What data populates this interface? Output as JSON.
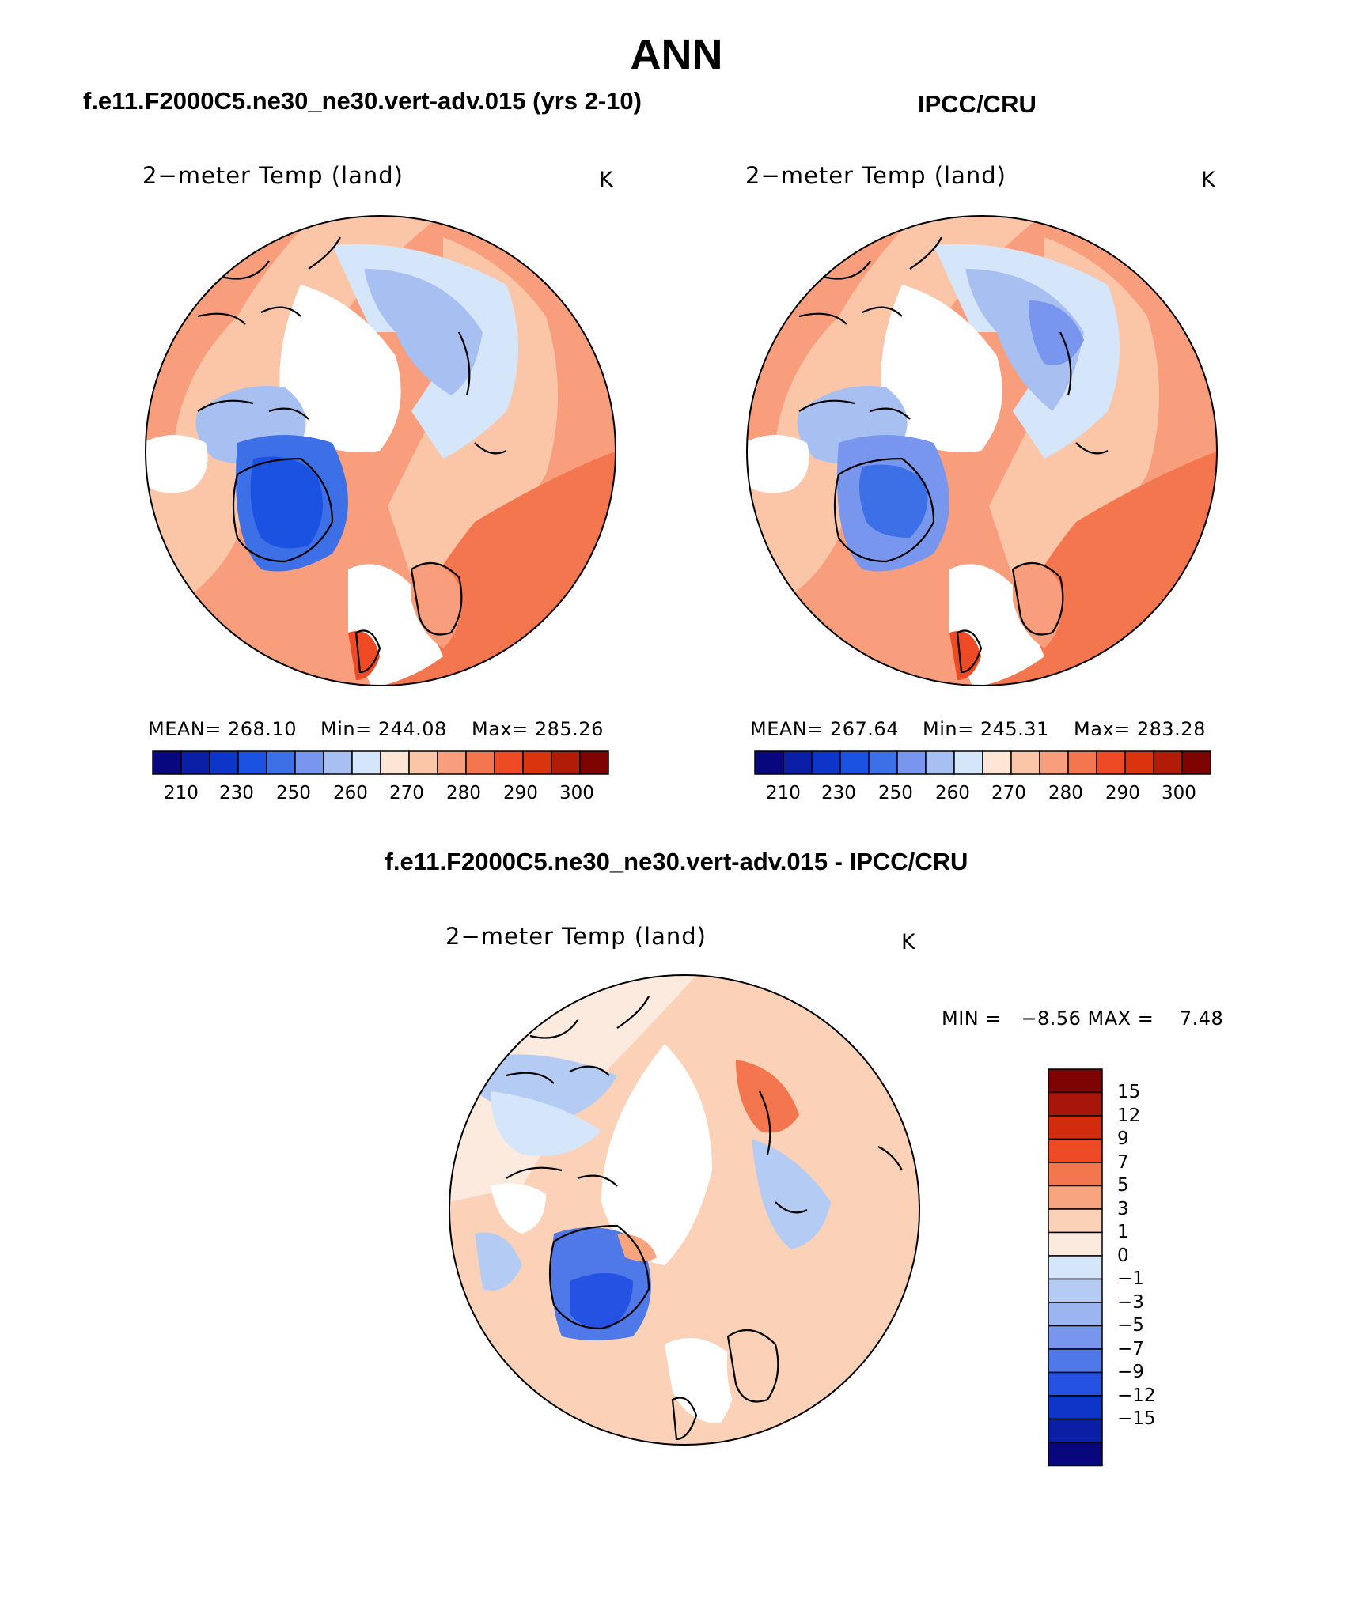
{
  "page": {
    "title": "ANN",
    "diff_title": "f.e11.F2000C5.ne30_ne30.vert-adv.015 - IPCC/CRU"
  },
  "panels": [
    {
      "case_title": "f.e11.F2000C5.ne30_ne30.vert-adv.015 (yrs 2-10)",
      "variable": "2−meter Temp (land)",
      "units": "K",
      "stats": {
        "mean": "MEAN= 268.10",
        "min": "Min= 244.08",
        "max": "Max= 285.26"
      }
    },
    {
      "case_title": "IPCC/CRU",
      "variable": "2−meter Temp (land)",
      "units": "K",
      "stats": {
        "mean": "MEAN= 267.64",
        "min": "Min= 245.31",
        "max": "Max= 283.28"
      }
    }
  ],
  "abs_colorbar": {
    "colors": [
      "#08077e",
      "#0a1fa6",
      "#0d35c8",
      "#1c52e2",
      "#3d6fe6",
      "#7896ee",
      "#a8bff2",
      "#d6e6fa",
      "#fde6d6",
      "#fbc5a8",
      "#f89e7c",
      "#f4764f",
      "#ee4a25",
      "#d9340e",
      "#b01c08",
      "#7e0404"
    ],
    "labels": [
      "210",
      "230",
      "250",
      "260",
      "270",
      "280",
      "290",
      "300"
    ]
  },
  "diff_panel": {
    "variable": "2−meter Temp (land)",
    "units": "K",
    "minmax": "MIN =   −8.56 MAX =    7.48",
    "colorbar": {
      "colors_top_to_bottom": [
        "#7e0404",
        "#a8150a",
        "#d22c0e",
        "#ee4a25",
        "#f4764f",
        "#f8a47f",
        "#fbd2b8",
        "#fdeade",
        "#d6e6fa",
        "#b4cbf3",
        "#9ab5ef",
        "#7896ee",
        "#4f78e8",
        "#2552e2",
        "#0d35c8",
        "#0a1fa6",
        "#08077e"
      ],
      "labels": [
        "15",
        "12",
        "9",
        "7",
        "5",
        "3",
        "1",
        "0",
        "−1",
        "−3",
        "−5",
        "−7",
        "−9",
        "−12",
        "−15"
      ]
    }
  }
}
